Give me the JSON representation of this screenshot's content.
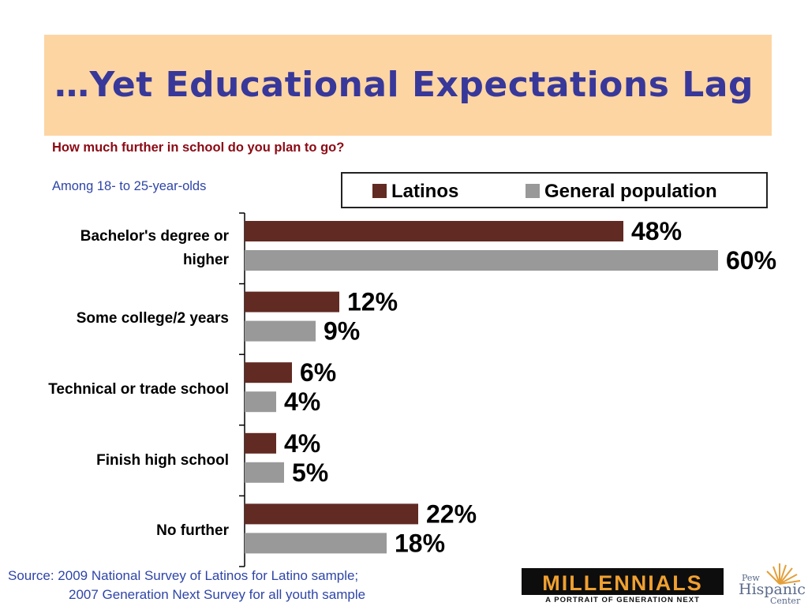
{
  "title": "…Yet Educational Expectations Lag",
  "question": "How much further in school do you plan to go?",
  "subhead": "Among 18- to 25-year-olds",
  "source": {
    "line1": "Source: 2009 National Survey of Latinos for Latino sample;",
    "line2": "2007 Generation Next Survey for all youth sample"
  },
  "logos": {
    "millennials": "MILLENNIALS",
    "millennials_tagline": "A PORTRAIT OF GENERATION NEXT",
    "pew_small": "Pew",
    "pew_hispanic": "Hispanic",
    "pew_center": "Center"
  },
  "colors": {
    "latinos": "#612a22",
    "general": "#999999",
    "title": "#38389a",
    "band": "#fdd5a3"
  },
  "chart_data": {
    "type": "bar",
    "orientation": "horizontal",
    "categories": [
      "Bachelor's degree or higher",
      "Some college/2 years",
      "Technical or trade school",
      "Finish high school",
      "No further"
    ],
    "series": [
      {
        "name": "Latinos",
        "values": [
          48,
          12,
          6,
          4,
          22
        ],
        "labels": [
          "48%",
          "12%",
          "6%",
          "4%",
          "22%"
        ]
      },
      {
        "name": "General population",
        "values": [
          60,
          9,
          4,
          5,
          18
        ],
        "labels": [
          "60%",
          "9%",
          "4%",
          "5%",
          "18%"
        ]
      }
    ],
    "legend_position": "top-right",
    "grid": false
  }
}
